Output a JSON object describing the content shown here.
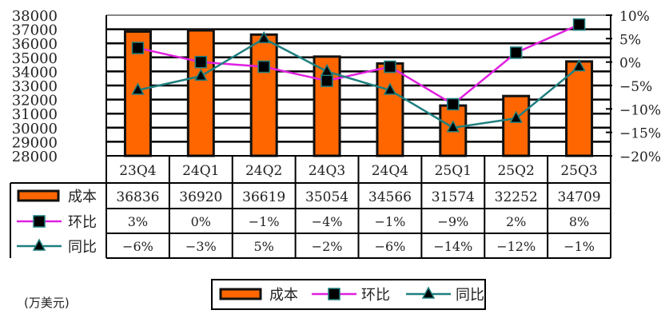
{
  "chart_data": {
    "type": "bar+line",
    "unit_label": "(万美元)",
    "categories": [
      "23Q4",
      "24Q1",
      "24Q2",
      "24Q3",
      "24Q4",
      "25Q1",
      "25Q2",
      "25Q3"
    ],
    "bar_series": {
      "name": "成本",
      "values": [
        36836,
        36920,
        36619,
        35054,
        34566,
        31574,
        32252,
        34709
      ],
      "color": "#FF6600",
      "axis": "left"
    },
    "line_series": [
      {
        "name": "环比",
        "labels": [
          "3%",
          "0%",
          "-1%",
          "-4%",
          "-1%",
          "-9%",
          "2%",
          "8%"
        ],
        "values": [
          3,
          0,
          -1,
          -4,
          -1,
          -9,
          2,
          8
        ],
        "color": "#E020E0",
        "marker": "square",
        "axis": "right"
      },
      {
        "name": "同比",
        "labels": [
          "-6%",
          "-3%",
          "5%",
          "-2%",
          "-6%",
          "-14%",
          "-12%",
          "-1%"
        ],
        "values": [
          -6,
          -3,
          5,
          -2,
          -6,
          -14,
          -12,
          -1
        ],
        "color": "#1F7F7F",
        "marker": "triangle",
        "axis": "right"
      }
    ],
    "left_axis": {
      "ylim": [
        28000,
        38000
      ],
      "ticks": [
        "38000",
        "37000",
        "36000",
        "35000",
        "34000",
        "33000",
        "32000",
        "31000",
        "30000",
        "29000",
        "28000"
      ]
    },
    "right_axis": {
      "ylim": [
        -20,
        10
      ],
      "ticks": [
        "10%",
        "5%",
        "0%",
        "-5%",
        "-10%",
        "-15%",
        "-20%"
      ]
    },
    "grid": true,
    "data_table": true,
    "legend": {
      "placement": "bottom",
      "items": [
        "成本",
        "环比",
        "同比"
      ]
    }
  }
}
